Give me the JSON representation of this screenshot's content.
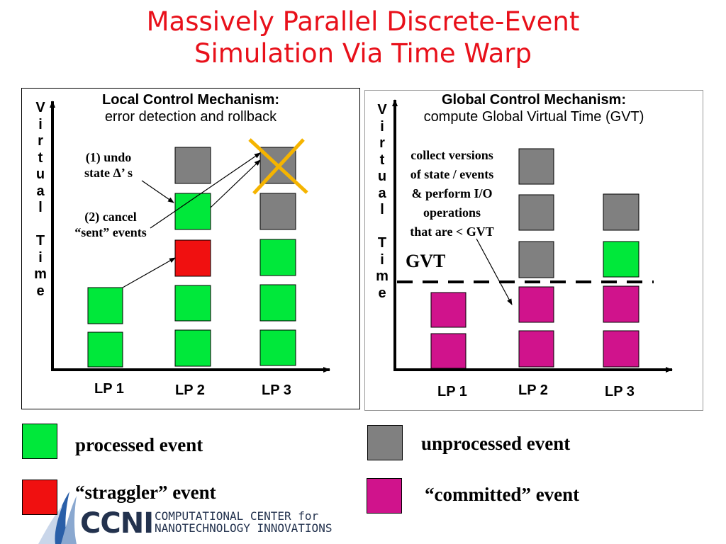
{
  "title": {
    "line1": "Massively Parallel Discrete-Event",
    "line2": "Simulation Via Time Warp"
  },
  "left_panel": {
    "heading": "Local Control Mechanism:",
    "subheading": "error detection and rollback",
    "axis_label": [
      "V",
      "i",
      "r",
      "t",
      "u",
      "a",
      "l",
      "",
      "T",
      "i",
      "m",
      "e"
    ],
    "lp_labels": [
      "LP 1",
      "LP 2",
      "LP 3"
    ],
    "annotation_undo": [
      "(1)  undo",
      "state Δ’ s"
    ],
    "annotation_cancel": [
      "(2) cancel",
      "“sent” events"
    ]
  },
  "right_panel": {
    "heading": "Global Control Mechanism:",
    "subheading": "compute Global Virtual Time (GVT)",
    "axis_label": [
      "V",
      "i",
      "r",
      "t",
      "u",
      "a",
      "l",
      "",
      "T",
      "i",
      "m",
      "e"
    ],
    "lp_labels": [
      "LP 1",
      "LP 2",
      "LP 3"
    ],
    "annotation": [
      "collect versions",
      "of state / events",
      "& perform I/O",
      "operations",
      "that are < GVT"
    ],
    "gvt_label": "GVT"
  },
  "legend": {
    "processed": "processed event",
    "straggler": "“straggler” event",
    "unprocessed": "unprocessed event",
    "committed": "“committed” event"
  },
  "logo": {
    "name": "CCNI",
    "line1": "COMPUTATIONAL CENTER for",
    "line2": "NANOTECHNOLOGY INNOVATIONS"
  },
  "colors": {
    "processed": "#00e83a",
    "straggler": "#f01010",
    "unprocessed": "#808080",
    "committed": "#d0138c",
    "cancel_mark": "#f5b400",
    "title": "#e8101a"
  }
}
